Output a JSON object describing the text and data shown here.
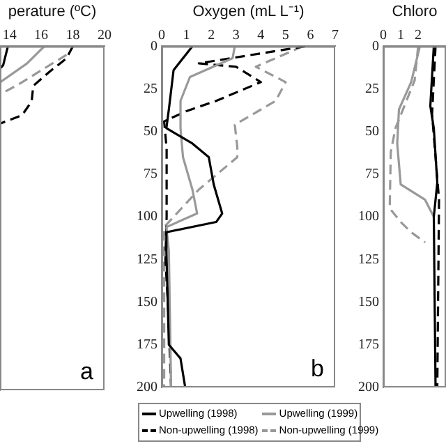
{
  "chart_data": [
    {
      "type": "line",
      "xlabel": "perature (ºC)",
      "xlim": [
        13.4,
        20
      ],
      "xticks": [
        14,
        16,
        18,
        20
      ],
      "ylim": [
        200,
        0
      ],
      "yticks": [
        0,
        25,
        50,
        75,
        100,
        125,
        150,
        175,
        200
      ],
      "tick_labels": "x",
      "grid": false,
      "marker": "none",
      "annotations": [
        "a"
      ],
      "series": [
        {
          "color": "#000000",
          "line_style": "solid",
          "x": [
            13.9,
            13.6,
            13.4
          ],
          "values": [
            0,
            11,
            13
          ]
        },
        {
          "color": "#999999",
          "line_style": "solid",
          "x": [
            16.2,
            15.1,
            13.4
          ],
          "values": [
            0,
            10,
            21
          ]
        },
        {
          "color": "#000000",
          "line_style": "dashed",
          "x": [
            18,
            17.6,
            16.5,
            15.5,
            15.4,
            14.8,
            13.4
          ],
          "values": [
            0,
            7,
            15,
            23,
            32,
            40,
            45
          ]
        },
        {
          "color": "#999999",
          "line_style": "dashed",
          "x": [
            17.6,
            16,
            14.6,
            13.4
          ],
          "values": [
            5,
            14,
            22,
            28
          ]
        }
      ]
    },
    {
      "type": "line",
      "xlabel": "Oxygen (mL L⁻¹)",
      "xlim": [
        0,
        7
      ],
      "xticks": [
        0,
        1,
        2,
        3,
        4,
        5,
        6,
        7
      ],
      "ylim": [
        200,
        0
      ],
      "yticks": [
        0,
        25,
        50,
        75,
        100,
        125,
        150,
        175,
        200
      ],
      "grid": false,
      "marker": "none",
      "legend": "bottom",
      "annotations": [
        "b"
      ],
      "series": [
        {
          "name": "Upwelling (1998)",
          "color": "#000000",
          "line_style": "solid",
          "x": [
            1.24,
            0.48,
            0.29,
            0.19,
            1.24,
            1.9,
            2.1,
            2.44,
            2.2,
            0.19,
            0.19,
            0.29,
            0.76,
            0.95
          ],
          "values": [
            0,
            14,
            37,
            48,
            57,
            65,
            81,
            98,
            103,
            109,
            120,
            175,
            183,
            200
          ]
        },
        {
          "name": "Upwelling (1999)",
          "color": "#999999",
          "line_style": "solid",
          "x": [
            2.95,
            2.86,
            1.14,
            0.76,
            0.76,
            0.86,
            1.24,
            1.43,
            0.19,
            0.29,
            0.38
          ],
          "values": [
            0,
            7,
            18,
            32,
            48,
            65,
            84,
            98,
            106,
            120,
            200
          ]
        },
        {
          "name": "Non-upwelling (1998)",
          "color": "#000000",
          "line_style": "dashed",
          "x": [
            5.8,
            1.5,
            3,
            4,
            2.2,
            1,
            0.1,
            0.2,
            0.2,
            0.15,
            0.25,
            0.38
          ],
          "values": [
            0,
            10,
            12,
            21,
            32,
            38,
            44,
            60,
            100,
            125,
            150,
            200
          ]
        },
        {
          "name": "Non-upwelling (1999)",
          "color": "#999999",
          "line_style": "dashed",
          "x": [
            5.7,
            3.8,
            5,
            4.6,
            2.95,
            3.05,
            3.05,
            1.5,
            0.1,
            0.1
          ],
          "values": [
            0,
            12,
            21,
            32,
            46,
            59,
            65,
            84,
            106,
            200
          ]
        }
      ]
    },
    {
      "type": "line",
      "xlabel": "Chloro",
      "xlim": [
        0,
        3.6
      ],
      "xticks": [
        0,
        1,
        2
      ],
      "ylim": [
        200,
        0
      ],
      "yticks": [
        0,
        25,
        50,
        75,
        100,
        125,
        150,
        175,
        200
      ],
      "grid": false,
      "marker": "none",
      "series": [
        {
          "color": "#000000",
          "line_style": "solid",
          "x": [
            2.9,
            2.7,
            2.9,
            3.1,
            2.9,
            3
          ],
          "values": [
            0,
            35,
            48,
            80,
            100,
            200
          ]
        },
        {
          "color": "#999999",
          "line_style": "solid",
          "x": [
            2.1,
            1.6,
            0.9,
            0.8,
            1,
            2.4,
            2.9
          ],
          "values": [
            0,
            21,
            37,
            57,
            81,
            90,
            100
          ]
        },
        {
          "color": "#000000",
          "line_style": "dashed",
          "x": [
            3,
            2.8,
            3.2,
            3.1
          ],
          "values": [
            0,
            40,
            90,
            200
          ]
        },
        {
          "color": "#999999",
          "line_style": "dashed",
          "x": [
            2,
            1.8,
            0.7,
            0.43,
            0.37,
            1,
            1.6,
            2.4
          ],
          "values": [
            0,
            20,
            48,
            62,
            95,
            103,
            109,
            115
          ]
        }
      ]
    }
  ]
}
